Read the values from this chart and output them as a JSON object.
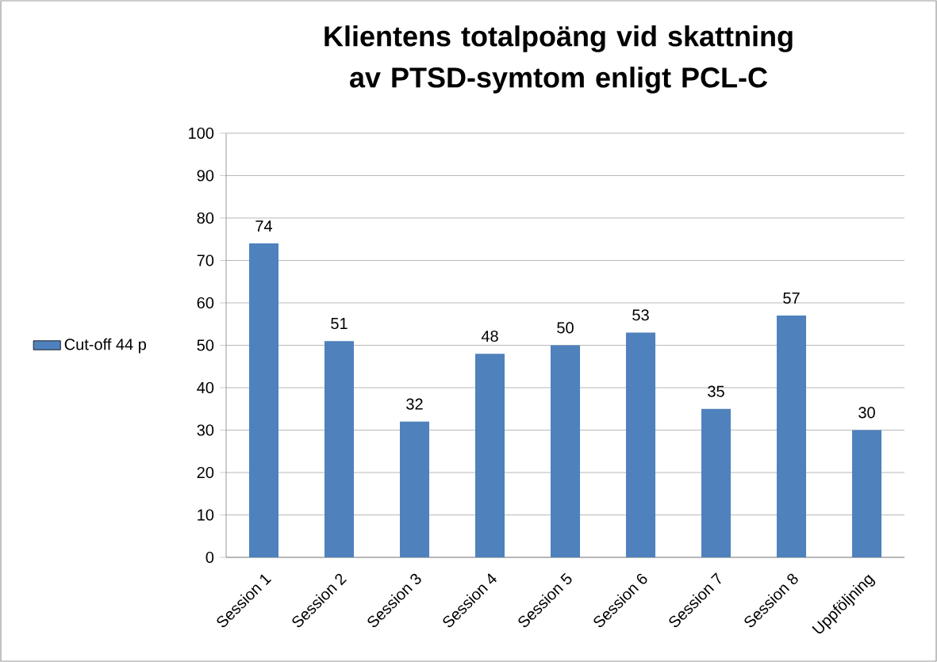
{
  "chart_data": {
    "type": "bar",
    "title": "Klientens totalpoäng vid skattning av PTSD-symtom enligt PCL-C",
    "categories": [
      "Session 1",
      "Session 2",
      "Session 3",
      "Session 4",
      "Session 5",
      "Session 6",
      "Session 7",
      "Session 8",
      "Uppföljning"
    ],
    "series": [
      {
        "name": "Cut-off 44 p",
        "color": "#4f81bd",
        "values": [
          74,
          51,
          32,
          48,
          50,
          53,
          35,
          57,
          30
        ]
      }
    ],
    "ylim": [
      0,
      100
    ],
    "yticks": [
      0,
      10,
      20,
      30,
      40,
      50,
      60,
      70,
      80,
      90,
      100
    ],
    "grid": "y",
    "legend": "left",
    "data_labels": true
  }
}
